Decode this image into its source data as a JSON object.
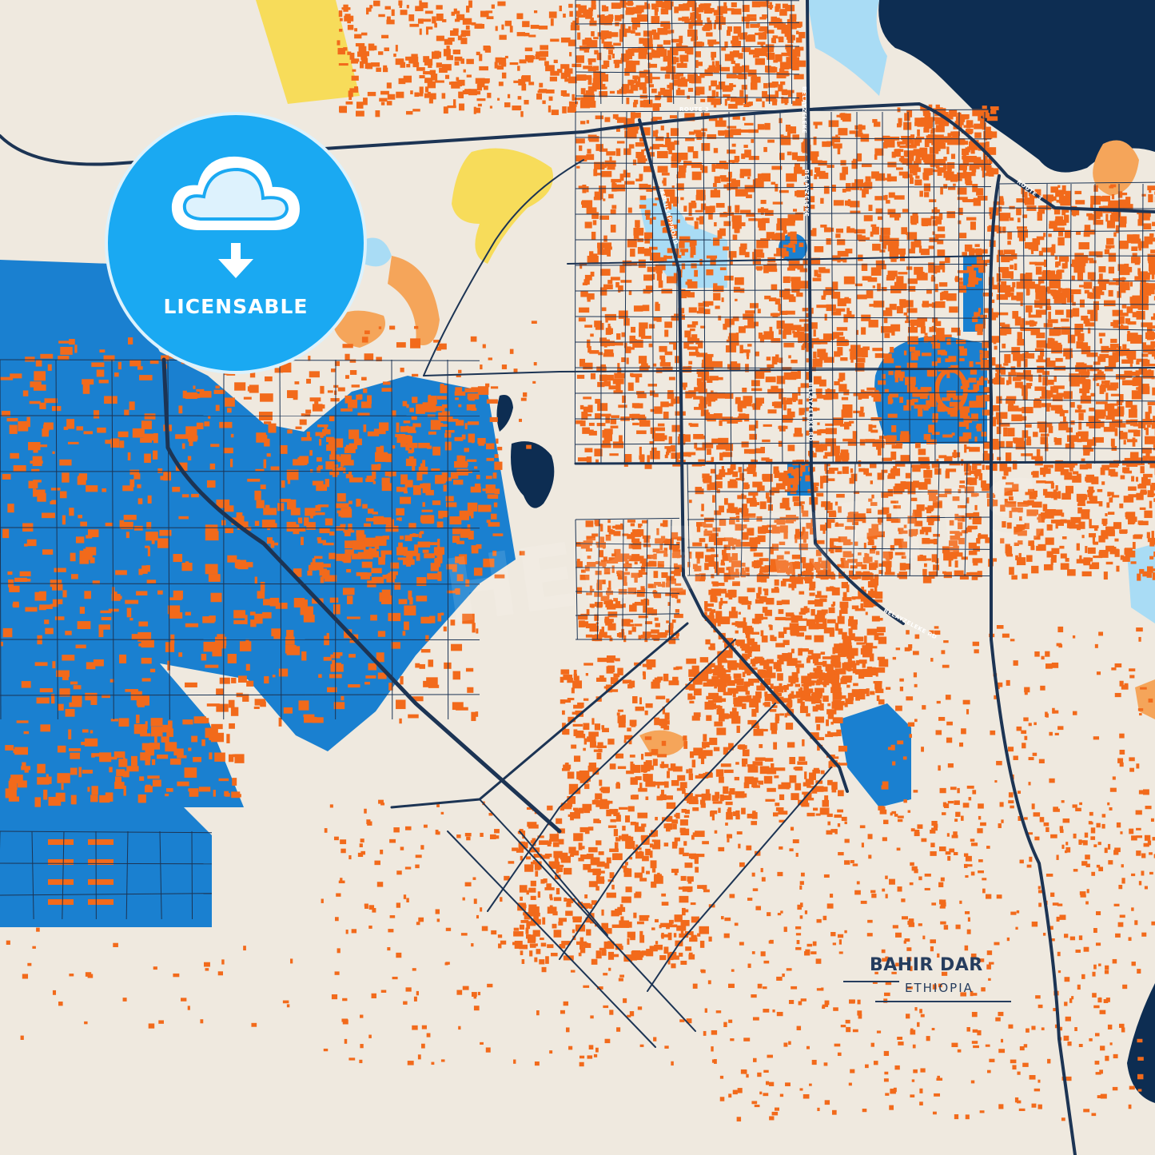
{
  "map": {
    "city": "BAHIR DAR",
    "country": "ETHIOPIA",
    "road_labels": [
      "ROUTE 3",
      "ROUTE 3",
      "BELAYZELEKE",
      "BELAYZELEKE",
      "BELAYZELEKE RD",
      "BELAYZELEKE RD",
      "EPLUSAPPROAD"
    ],
    "colors": {
      "background": "#efe9df",
      "buildings": "#f26a1b",
      "zones": "#1a80d0",
      "lake": "#0d2d52",
      "water_light": "#a9dcf5",
      "parks": "#f7dc5a",
      "sand": "#f5a55a",
      "roads": "#1c3454"
    }
  },
  "badge": {
    "label": "LICENSABLE",
    "icon": "cloud-download-icon",
    "color": "#1aa9f2"
  },
  "watermark": "HEBSTREITS"
}
